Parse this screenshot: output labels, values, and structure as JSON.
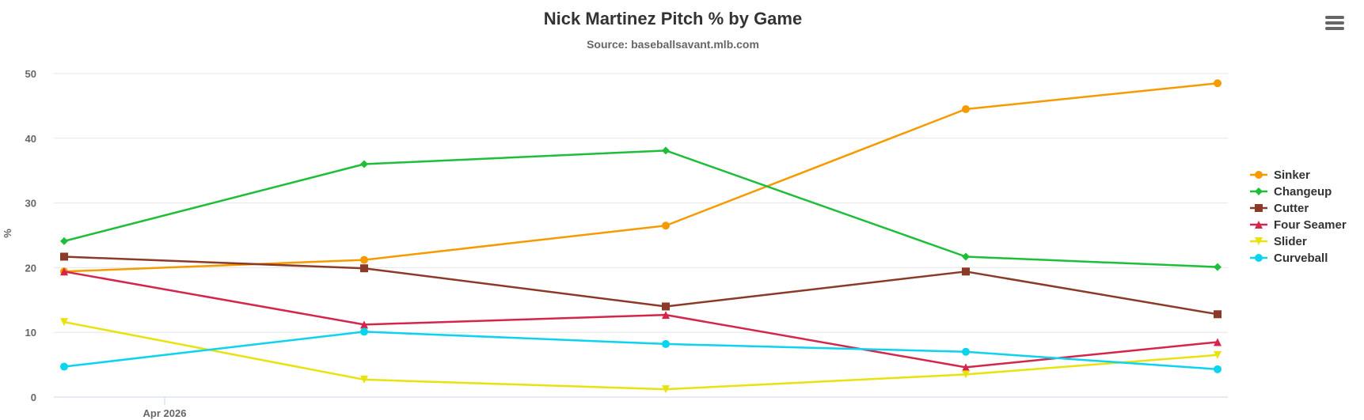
{
  "chart_data": {
    "type": "line",
    "title": "Nick Martinez Pitch % by Game",
    "subtitle": "Source: baseballsavant.mlb.com",
    "xlabel": "",
    "ylabel": "%",
    "ylim": [
      0,
      50
    ],
    "yticks": [
      "0",
      "10",
      "20",
      "30",
      "40",
      "50"
    ],
    "xticks": [
      "Apr 2026"
    ],
    "grid": true,
    "legend_position": "right",
    "x": [
      1,
      2,
      3,
      4,
      5
    ],
    "series": [
      {
        "name": "Sinker",
        "color": "#f59b00",
        "marker": "circle",
        "values": [
          19.4,
          21.2,
          26.5,
          44.5,
          48.5
        ]
      },
      {
        "name": "Changeup",
        "color": "#1fbe3a",
        "marker": "diamond",
        "values": [
          24.1,
          36.0,
          38.1,
          21.7,
          20.1
        ]
      },
      {
        "name": "Cutter",
        "color": "#8b3a28",
        "marker": "square",
        "values": [
          21.7,
          19.9,
          14.0,
          19.4,
          12.8
        ]
      },
      {
        "name": "Four Seamer",
        "color": "#d4264a",
        "marker": "triangle",
        "values": [
          19.4,
          11.2,
          12.7,
          4.6,
          8.5
        ]
      },
      {
        "name": "Slider",
        "color": "#e8e20e",
        "marker": "triangle-down",
        "values": [
          11.6,
          2.7,
          1.2,
          3.5,
          6.5
        ]
      },
      {
        "name": "Curveball",
        "color": "#0cd3ee",
        "marker": "circle",
        "values": [
          4.7,
          10.1,
          8.2,
          7.0,
          4.3
        ]
      }
    ]
  },
  "menu": {
    "icon": "hamburger-menu-icon"
  }
}
